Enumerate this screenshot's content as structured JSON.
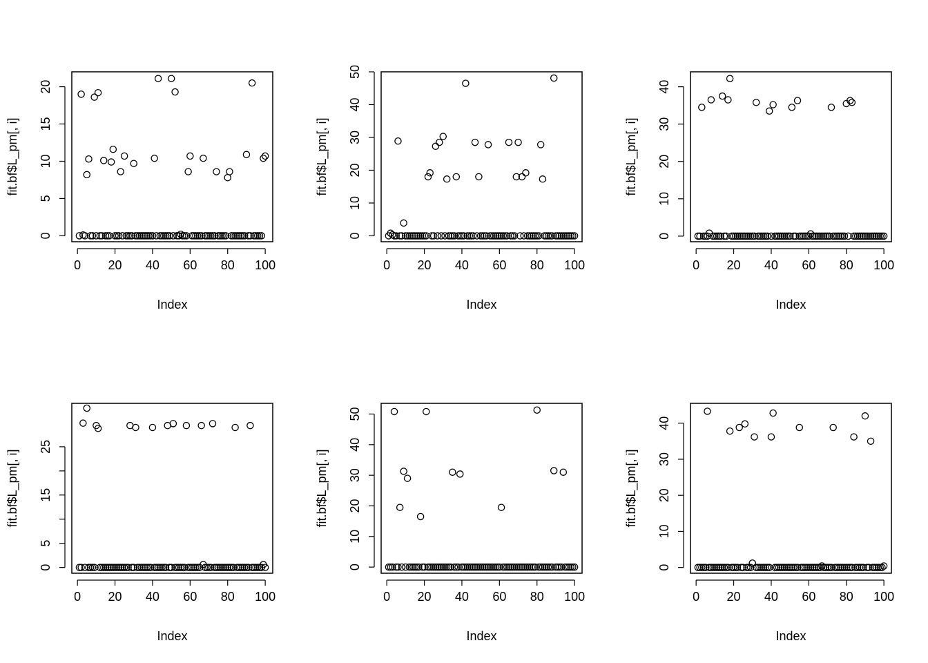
{
  "figure": {
    "background": "#ffffff",
    "point_color": "#000000"
  },
  "chart_data": [
    {
      "type": "scatter",
      "xlabel": "Index",
      "ylabel": "fit.bf$L_pm[, i]",
      "xticks": [
        0,
        20,
        40,
        60,
        80,
        100
      ],
      "yticks": [
        0,
        5,
        10,
        15,
        20
      ],
      "xlim": [
        -3,
        104
      ],
      "ylim": [
        -0.8,
        22
      ],
      "n_points": 100,
      "nonzero": [
        [
          2,
          19.0
        ],
        [
          3,
          0.1
        ],
        [
          5,
          8.2
        ],
        [
          6,
          10.3
        ],
        [
          9,
          18.6
        ],
        [
          11,
          19.2
        ],
        [
          14,
          10.1
        ],
        [
          18,
          9.9
        ],
        [
          19,
          11.6
        ],
        [
          23,
          8.6
        ],
        [
          25,
          10.7
        ],
        [
          30,
          9.7
        ],
        [
          41,
          10.4
        ],
        [
          43,
          21.1
        ],
        [
          50,
          21.1
        ],
        [
          52,
          19.3
        ],
        [
          55,
          0.2
        ],
        [
          59,
          8.6
        ],
        [
          60,
          10.7
        ],
        [
          67,
          10.4
        ],
        [
          74,
          8.6
        ],
        [
          80,
          7.8
        ],
        [
          81,
          8.6
        ],
        [
          90,
          10.9
        ],
        [
          93,
          20.5
        ],
        [
          99,
          10.4
        ],
        [
          100,
          10.7
        ]
      ],
      "zero_value": 0
    },
    {
      "type": "scatter",
      "xlabel": "Index",
      "ylabel": "fit.bf$L_pm[, i]",
      "xticks": [
        0,
        20,
        40,
        60,
        80,
        100
      ],
      "yticks": [
        0,
        10,
        20,
        30,
        40,
        50
      ],
      "xlim": [
        -3,
        104
      ],
      "ylim": [
        -1.8,
        50
      ],
      "n_points": 100,
      "nonzero": [
        [
          2,
          0.8
        ],
        [
          3,
          0.3
        ],
        [
          6,
          28.9
        ],
        [
          9,
          3.9
        ],
        [
          22,
          18.0
        ],
        [
          23,
          19.2
        ],
        [
          26,
          27.3
        ],
        [
          28,
          28.5
        ],
        [
          30,
          30.3
        ],
        [
          32,
          17.3
        ],
        [
          37,
          18.0
        ],
        [
          42,
          46.5
        ],
        [
          47,
          28.5
        ],
        [
          49,
          18.0
        ],
        [
          54,
          27.8
        ],
        [
          65,
          28.5
        ],
        [
          69,
          18.0
        ],
        [
          70,
          28.5
        ],
        [
          72,
          18.0
        ],
        [
          74,
          19.2
        ],
        [
          82,
          27.8
        ],
        [
          83,
          17.3
        ],
        [
          89,
          48.1
        ]
      ],
      "zero_value": 0
    },
    {
      "type": "scatter",
      "xlabel": "Index",
      "ylabel": "fit.bf$L_pm[, i]",
      "xticks": [
        0,
        20,
        40,
        60,
        80,
        100
      ],
      "yticks": [
        0,
        10,
        20,
        30,
        40
      ],
      "xlim": [
        -3,
        104
      ],
      "ylim": [
        -1.5,
        44
      ],
      "n_points": 100,
      "nonzero": [
        [
          3,
          34.5
        ],
        [
          7,
          0.8
        ],
        [
          8,
          36.5
        ],
        [
          14,
          37.5
        ],
        [
          17,
          36.5
        ],
        [
          18,
          42.2
        ],
        [
          32,
          35.8
        ],
        [
          39,
          33.5
        ],
        [
          41,
          35.2
        ],
        [
          51,
          34.5
        ],
        [
          54,
          36.3
        ],
        [
          61,
          0.6
        ],
        [
          72,
          34.5
        ],
        [
          80,
          35.5
        ],
        [
          82,
          36.3
        ],
        [
          83,
          35.8
        ]
      ],
      "zero_value": 0
    },
    {
      "type": "scatter",
      "xlabel": "Index",
      "ylabel": "fit.bf$L_pm[, i]",
      "xticks": [
        0,
        20,
        40,
        60,
        80,
        100
      ],
      "yticks": [
        0,
        5,
        15,
        25
      ],
      "yticks_minor": [
        10,
        20
      ],
      "xlim": [
        -3,
        104
      ],
      "ylim": [
        -1.2,
        34
      ],
      "n_points": 100,
      "nonzero": [
        [
          3,
          29.9
        ],
        [
          5,
          33.0
        ],
        [
          10,
          29.4
        ],
        [
          11,
          28.8
        ],
        [
          28,
          29.4
        ],
        [
          31,
          29.0
        ],
        [
          40,
          29.0
        ],
        [
          48,
          29.4
        ],
        [
          51,
          29.8
        ],
        [
          58,
          29.4
        ],
        [
          66,
          29.4
        ],
        [
          67,
          0.6
        ],
        [
          72,
          29.8
        ],
        [
          84,
          29.0
        ],
        [
          92,
          29.4
        ],
        [
          99,
          0.6
        ]
      ],
      "zero_value": 0
    },
    {
      "type": "scatter",
      "xlabel": "Index",
      "ylabel": "fit.bf$L_pm[, i]",
      "xticks": [
        0,
        20,
        40,
        60,
        80,
        100
      ],
      "yticks": [
        0,
        10,
        20,
        30,
        40,
        50
      ],
      "xlim": [
        -3,
        104
      ],
      "ylim": [
        -2.0,
        53.5
      ],
      "n_points": 100,
      "nonzero": [
        [
          4,
          50.8
        ],
        [
          7,
          19.5
        ],
        [
          9,
          31.3
        ],
        [
          11,
          29.0
        ],
        [
          18,
          16.5
        ],
        [
          21,
          50.8
        ],
        [
          35,
          31.0
        ],
        [
          39,
          30.4
        ],
        [
          61,
          19.5
        ],
        [
          80,
          51.3
        ],
        [
          89,
          31.5
        ],
        [
          94,
          31.0
        ]
      ],
      "zero_value": 0
    },
    {
      "type": "scatter",
      "xlabel": "Index",
      "ylabel": "fit.bf$L_pm[, i]",
      "xticks": [
        0,
        20,
        40,
        60,
        80,
        100
      ],
      "yticks": [
        0,
        10,
        20,
        30,
        40
      ],
      "xlim": [
        -3,
        104
      ],
      "ylim": [
        -1.6,
        45.5
      ],
      "n_points": 100,
      "nonzero": [
        [
          6,
          43.3
        ],
        [
          18,
          37.8
        ],
        [
          23,
          38.8
        ],
        [
          26,
          39.8
        ],
        [
          30,
          1.2
        ],
        [
          31,
          36.2
        ],
        [
          40,
          36.2
        ],
        [
          41,
          42.8
        ],
        [
          55,
          38.8
        ],
        [
          67,
          0.4
        ],
        [
          73,
          38.8
        ],
        [
          84,
          36.2
        ],
        [
          90,
          42.0
        ],
        [
          93,
          35.0
        ],
        [
          100,
          0.4
        ]
      ],
      "zero_value": 0
    }
  ]
}
